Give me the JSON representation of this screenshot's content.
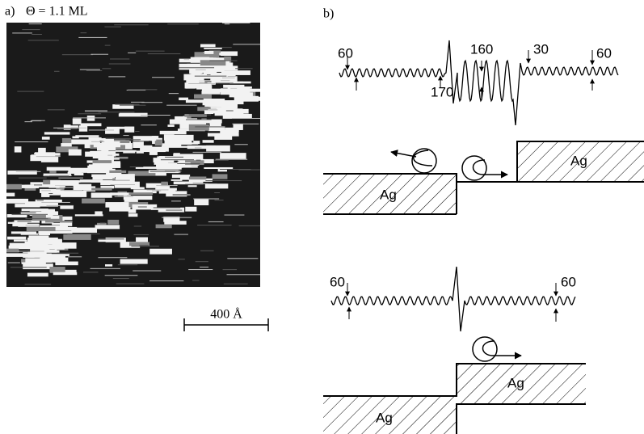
{
  "panel_a": {
    "label": "a)",
    "caption": "Θ = 1.1 ML",
    "scale_bar": "400 Å"
  },
  "panel_b": {
    "label": "b)",
    "top_diagram": {
      "wave_labels": [
        "60",
        "170",
        "160",
        "30",
        "60"
      ],
      "ag_labels": [
        "Ag",
        "Ag"
      ]
    },
    "bottom_diagram": {
      "wave_labels": [
        "60",
        "60"
      ],
      "ag_labels": [
        "Ag",
        "Ag"
      ]
    }
  }
}
